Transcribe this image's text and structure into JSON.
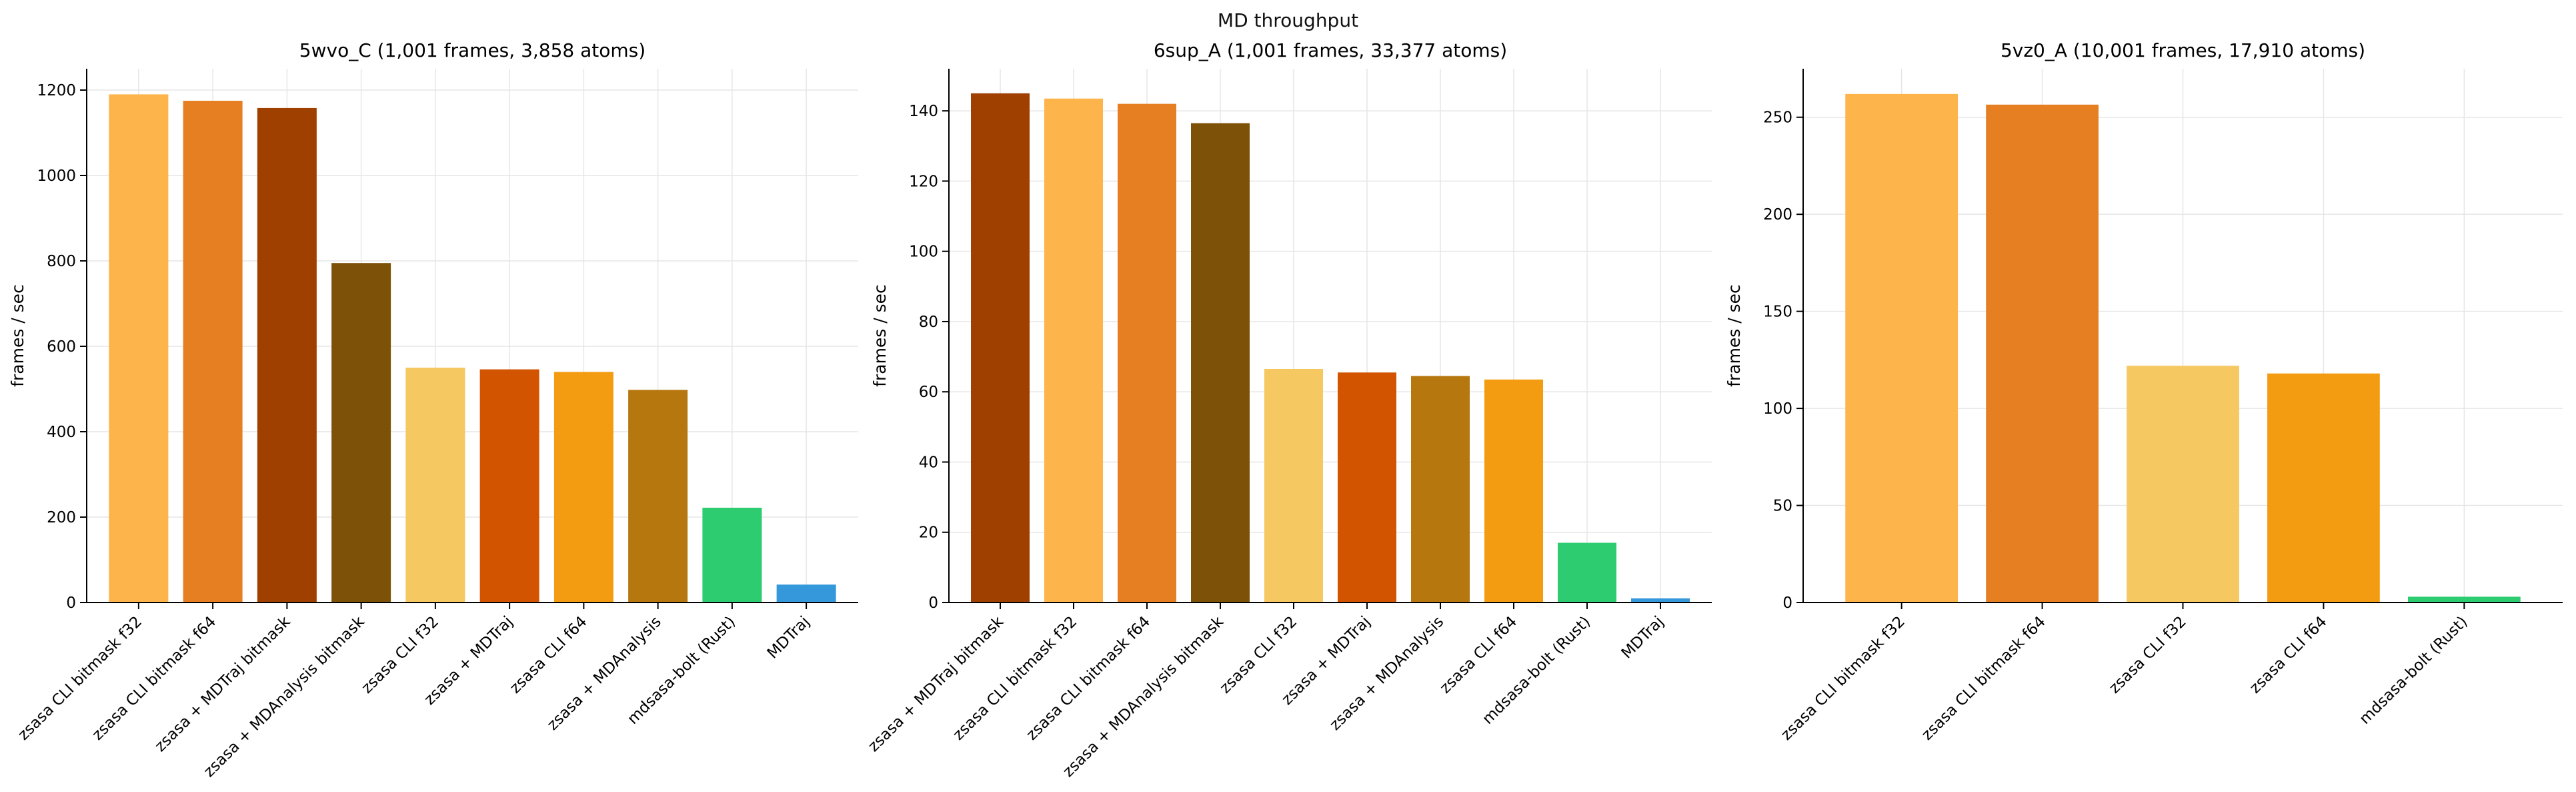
{
  "figure": {
    "suptitle": "MD throughput"
  },
  "colors": {
    "zsasa CLI bitmask f32": "#FDB44B",
    "zsasa CLI bitmask f64": "#E67E22",
    "zsasa + MDTraj bitmask": "#A04000",
    "zsasa + MDAnalysis bitmask": "#7D5208",
    "zsasa CLI f32": "#F5C862",
    "zsasa + MDTraj": "#D35400",
    "zsasa CLI f64": "#F39C12",
    "zsasa + MDAnalysis": "#B7770F",
    "mdsasa-bolt (Rust)": "#2ECC71",
    "MDTraj": "#3498DB"
  },
  "chart_data": [
    {
      "type": "bar",
      "title": "5wvo_C (1,001 frames, 3,858 atoms)",
      "ylabel": "frames / sec",
      "xlabel": "",
      "ylim": [
        0,
        1250
      ],
      "yticks": [
        0,
        200,
        400,
        600,
        800,
        1000,
        1200
      ],
      "grid": true,
      "categories": [
        "zsasa CLI bitmask f32",
        "zsasa CLI bitmask f64",
        "zsasa + MDTraj bitmask",
        "zsasa + MDAnalysis bitmask",
        "zsasa CLI f32",
        "zsasa + MDTraj",
        "zsasa CLI f64",
        "zsasa + MDAnalysis",
        "mdsasa-bolt (Rust)",
        "MDTraj"
      ],
      "values": [
        1190,
        1175,
        1158,
        795,
        550,
        546,
        540,
        498,
        222,
        42
      ]
    },
    {
      "type": "bar",
      "title": "6sup_A (1,001 frames, 33,377 atoms)",
      "ylabel": "frames / sec",
      "xlabel": "",
      "ylim": [
        0,
        152
      ],
      "yticks": [
        0,
        20,
        40,
        60,
        80,
        100,
        120,
        140
      ],
      "grid": true,
      "categories": [
        "zsasa + MDTraj bitmask",
        "zsasa CLI bitmask f32",
        "zsasa CLI bitmask f64",
        "zsasa + MDAnalysis bitmask",
        "zsasa CLI f32",
        "zsasa + MDTraj",
        "zsasa + MDAnalysis",
        "zsasa CLI f64",
        "mdsasa-bolt (Rust)",
        "MDTraj"
      ],
      "values": [
        145,
        143.5,
        142,
        136.5,
        66.5,
        65.5,
        64.5,
        63.5,
        17,
        1.2
      ]
    },
    {
      "type": "bar",
      "title": "5vz0_A (10,001 frames, 17,910 atoms)",
      "ylabel": "frames / sec",
      "xlabel": "",
      "ylim": [
        0,
        275
      ],
      "yticks": [
        0,
        50,
        100,
        150,
        200,
        250
      ],
      "grid": true,
      "categories": [
        "zsasa CLI bitmask f32",
        "zsasa CLI bitmask f64",
        "zsasa CLI f32",
        "zsasa CLI f64",
        "mdsasa-bolt (Rust)"
      ],
      "values": [
        262,
        256.5,
        122,
        118,
        3
      ]
    }
  ]
}
